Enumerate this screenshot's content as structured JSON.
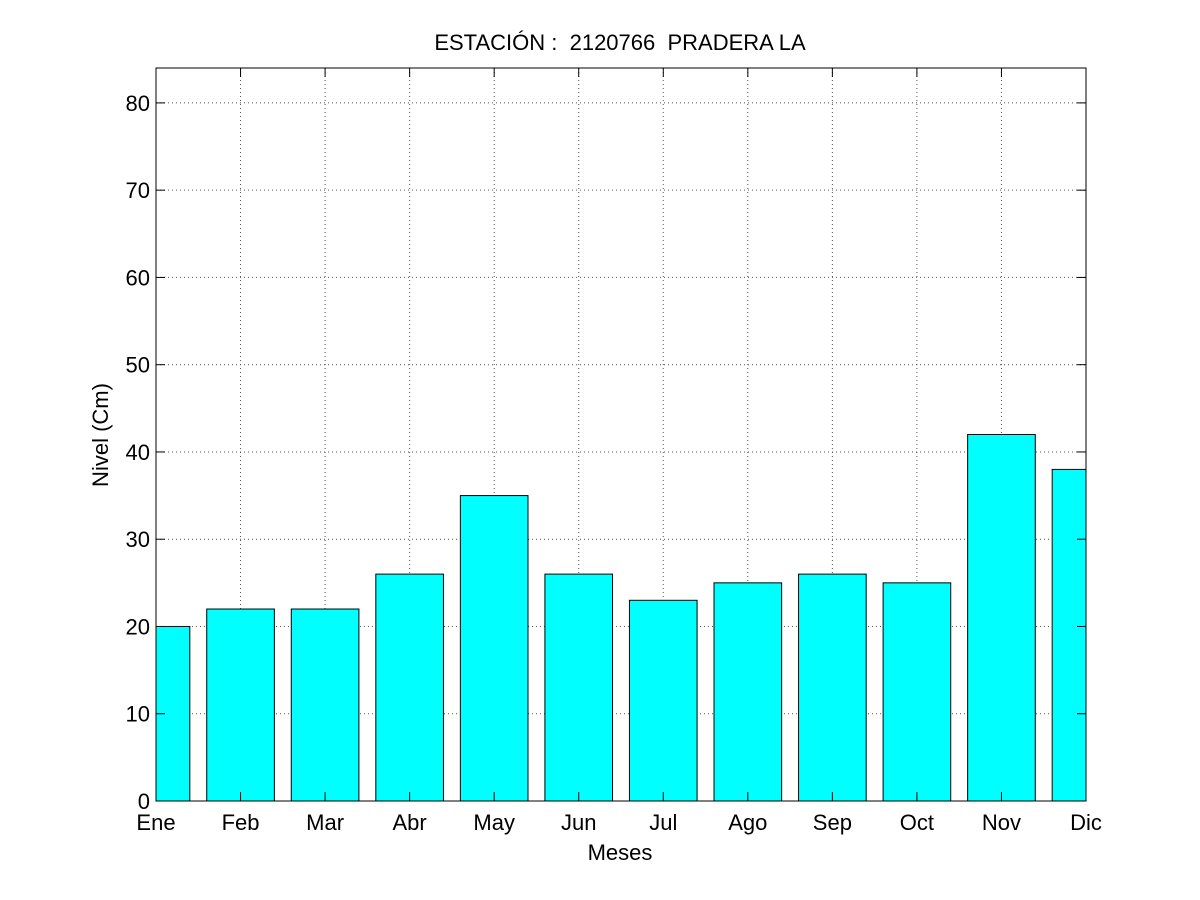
{
  "chart_data": {
    "type": "bar",
    "title": "ESTACIÓN :  2120766  PRADERA LA",
    "xlabel": "Meses",
    "ylabel": "Nivel (Cm)",
    "categories": [
      "Ene",
      "Feb",
      "Mar",
      "Abr",
      "May",
      "Jun",
      "Jul",
      "Ago",
      "Sep",
      "Oct",
      "Nov",
      "Dic"
    ],
    "values": [
      20,
      22,
      22,
      26,
      35,
      26,
      23,
      25,
      26,
      25,
      42,
      38
    ],
    "ylim": [
      0,
      84
    ],
    "yticks": [
      "0",
      "10",
      "20",
      "30",
      "40",
      "50",
      "60",
      "70",
      "80"
    ],
    "grid": true,
    "bar_color": "#00ffff",
    "edge_color": "#000000"
  }
}
